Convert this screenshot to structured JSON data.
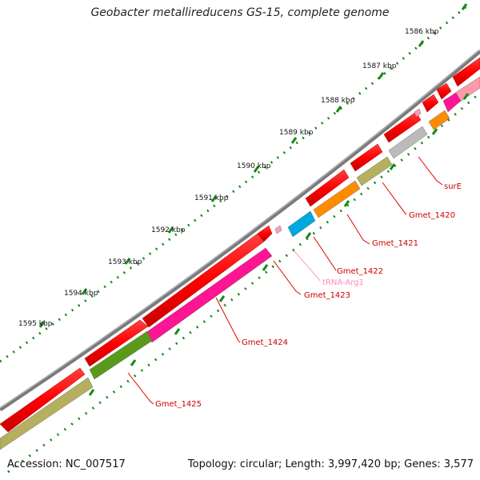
{
  "title": "Geobacter metallireducens GS-15, complete genome",
  "footer": {
    "accession": "Accession: NC_007517",
    "summary": "Topology: circular; Length: 3,997,420 bp; Genes: 3,577"
  },
  "scale": {
    "tick_labels": [
      "1586 kbp",
      "1587 kbp",
      "1588 kbp",
      "1589 kbp",
      "1590 kbp",
      "1591 kbp",
      "1592 kbp",
      "1593 kbp",
      "1594 kbp",
      "1595 kbp"
    ]
  },
  "colors": {
    "backbone": "#7a7a7a",
    "forward_cds": "#ff0000",
    "scale_dots": "#138a13",
    "label_line": "#e00000",
    "label_text": "#cc0000",
    "trna_label": "#ff8ab8"
  },
  "genes": [
    {
      "label": "surE",
      "color": "#ff99aa"
    },
    {
      "label": "Gmet_1420",
      "color": "#bbbbbb"
    },
    {
      "label": "Gmet_1421",
      "color": "#ff8c00"
    },
    {
      "label": "Gmet_1422",
      "color": "#00a8e0"
    },
    {
      "label": "tRNA-Arg1",
      "color": "#ff99cc"
    },
    {
      "label": "Gmet_1423",
      "color": "#ff2222"
    },
    {
      "label": "Gmet_1424",
      "color": "#ff1493"
    },
    {
      "label": "Gmet_1425",
      "color": "#5a9a1a"
    }
  ]
}
